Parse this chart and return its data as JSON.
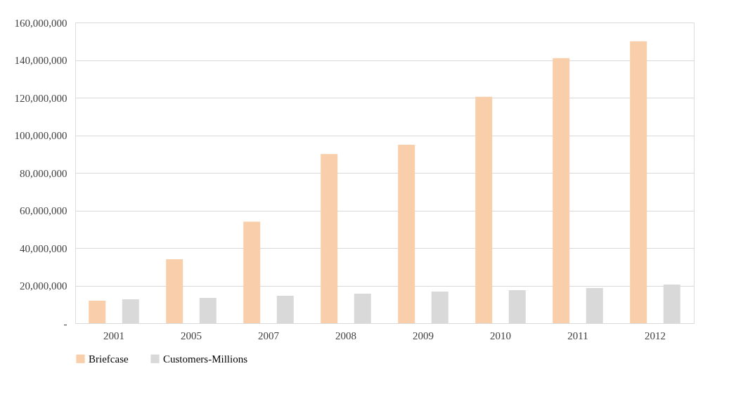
{
  "chart_data": {
    "type": "bar",
    "categories": [
      "2001",
      "2005",
      "2007",
      "2008",
      "2009",
      "2010",
      "2011",
      "2012"
    ],
    "series": [
      {
        "name": "Briefcase",
        "color": "#f9cfab",
        "values": [
          12000000,
          34000000,
          54000000,
          90000000,
          95000000,
          120500000,
          141000000,
          150000000
        ]
      },
      {
        "name": "Customers-Millions",
        "color": "#d9d9d9",
        "values": [
          12700000,
          13500000,
          14600000,
          15700000,
          16800000,
          17600000,
          18700000,
          20600000
        ]
      }
    ],
    "ylim": [
      0,
      160000000
    ],
    "yticks": [
      {
        "value": 0,
        "label": "-"
      },
      {
        "value": 20000000,
        "label": "20,000,000"
      },
      {
        "value": 40000000,
        "label": "40,000,000"
      },
      {
        "value": 60000000,
        "label": "60,000,000"
      },
      {
        "value": 80000000,
        "label": "80,000,000"
      },
      {
        "value": 100000000,
        "label": "100,000,000"
      },
      {
        "value": 120000000,
        "label": "120,000,000"
      },
      {
        "value": 140000000,
        "label": "140,000,000"
      },
      {
        "value": 160000000,
        "label": "160,000,000"
      }
    ],
    "grid": "y",
    "legend": "bottom"
  }
}
